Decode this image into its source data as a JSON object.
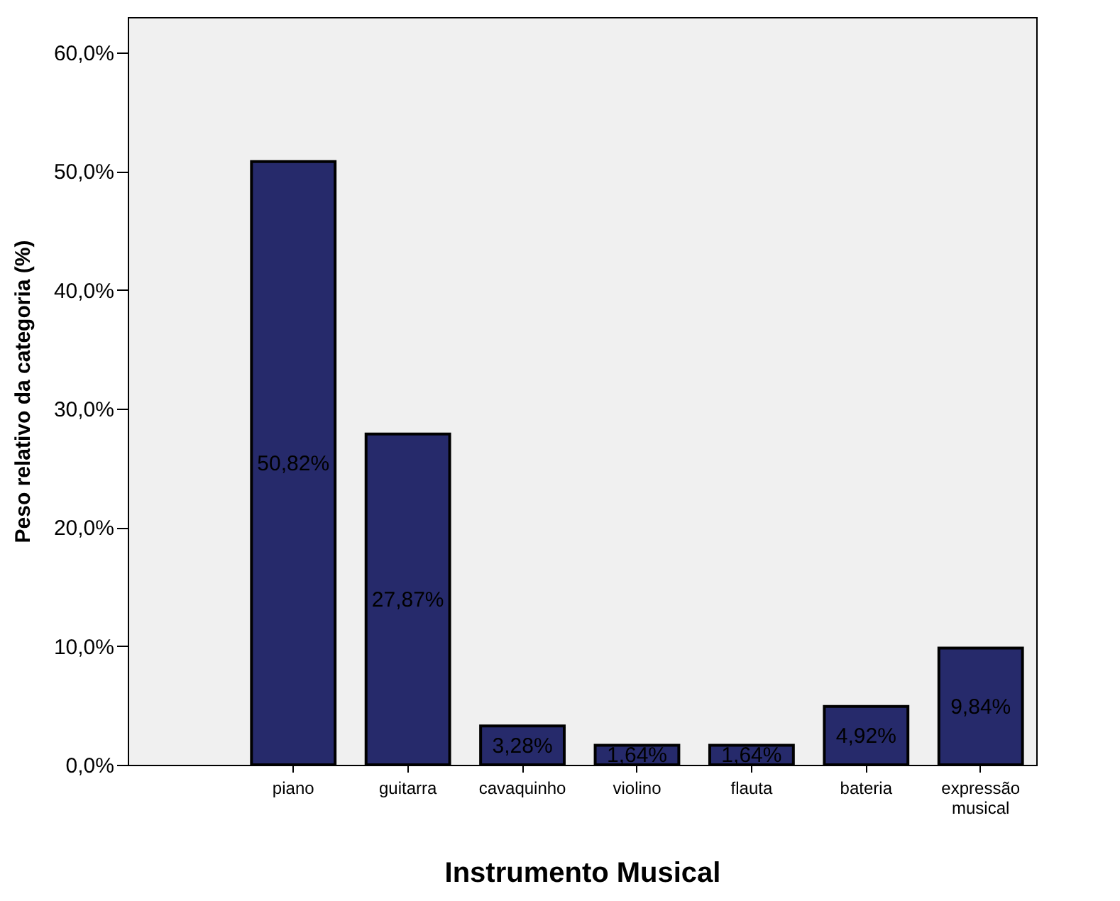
{
  "chart_data": {
    "type": "bar",
    "xlabel": "Instrumento Musical",
    "ylabel": "Peso relativo da categoria (%)",
    "categories": [
      "piano",
      "guitarra",
      "cavaquinho",
      "violino",
      "flauta",
      "bateria",
      "expressão musical"
    ],
    "values": [
      50.82,
      27.87,
      3.28,
      1.64,
      1.64,
      4.92,
      9.84
    ],
    "value_labels": [
      "50,82%",
      "27,87%",
      "3,28%",
      "1,64%",
      "1,64%",
      "4,92%",
      "9,84%"
    ],
    "color": "#262a6b",
    "ylim": [
      0,
      63
    ],
    "yticks": [
      {
        "value": 0,
        "label": "0,0%"
      },
      {
        "value": 10,
        "label": "10,0%"
      },
      {
        "value": 20,
        "label": "20,0%"
      },
      {
        "value": 30,
        "label": "30,0%"
      },
      {
        "value": 40,
        "label": "40,0%"
      },
      {
        "value": 50,
        "label": "50,0%"
      },
      {
        "value": 60,
        "label": "60,0%"
      }
    ],
    "grid": false
  }
}
